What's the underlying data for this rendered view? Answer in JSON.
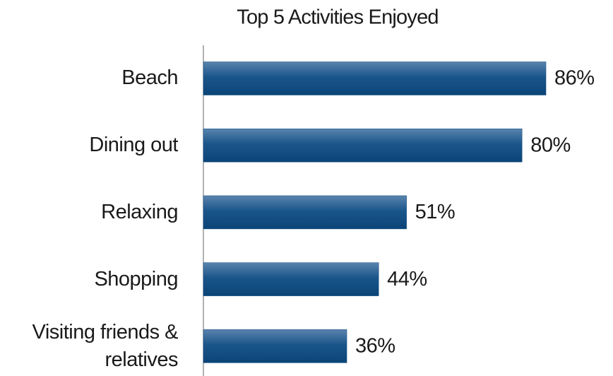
{
  "chart_data": {
    "type": "bar",
    "orientation": "horizontal",
    "title": "Top 5 Activities Enjoyed",
    "categories": [
      "Beach",
      "Dining out",
      "Relaxing",
      "Shopping",
      "Visiting friends & relatives"
    ],
    "values": [
      86,
      80,
      51,
      44,
      36
    ],
    "value_labels": [
      "86%",
      "80%",
      "51%",
      "44%",
      "36%"
    ],
    "color": "#0e4a80"
  }
}
